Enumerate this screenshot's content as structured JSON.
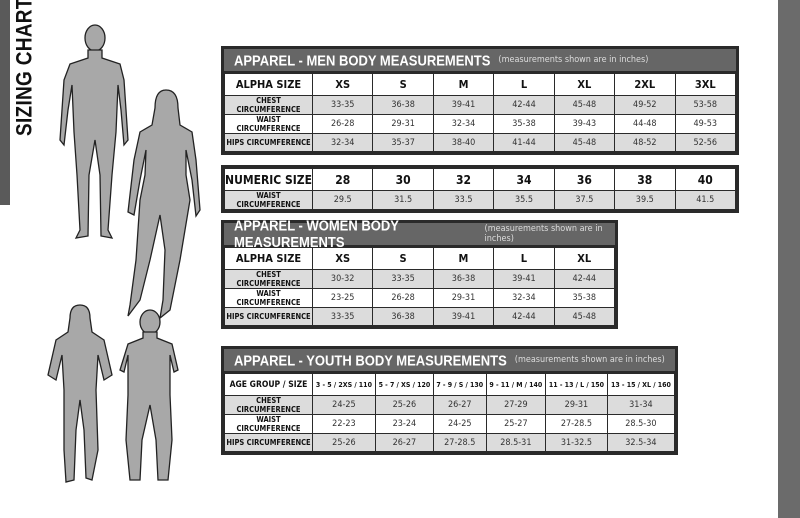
{
  "title": "SIZING CHART",
  "men": {
    "title": "APPAREL - MEN BODY MEASUREMENTS",
    "note": "(measurements shown are in inches)",
    "header": [
      "ALPHA SIZE",
      "XS",
      "S",
      "M",
      "L",
      "XL",
      "2XL",
      "3XL"
    ],
    "rows": [
      [
        "CHEST CIRCUMFERENCE",
        "33-35",
        "36-38",
        "39-41",
        "42-44",
        "45-48",
        "49-52",
        "53-58"
      ],
      [
        "WAIST CIRCUMFERENCE",
        "26-28",
        "29-31",
        "32-34",
        "35-38",
        "39-43",
        "44-48",
        "49-53"
      ],
      [
        "HIPS CIRCUMFERENCE",
        "32-34",
        "35-37",
        "38-40",
        "41-44",
        "45-48",
        "48-52",
        "52-56"
      ]
    ]
  },
  "numeric": {
    "header": [
      "NUMERIC SIZE",
      "28",
      "30",
      "32",
      "34",
      "36",
      "38",
      "40"
    ],
    "rows": [
      [
        "WAIST CIRCUMFERENCE",
        "29.5",
        "31.5",
        "33.5",
        "35.5",
        "37.5",
        "39.5",
        "41.5"
      ]
    ]
  },
  "women": {
    "title": "APPAREL - WOMEN BODY MEASUREMENTS",
    "note": "(measurements shown are in inches)",
    "header": [
      "ALPHA SIZE",
      "XS",
      "S",
      "M",
      "L",
      "XL"
    ],
    "rows": [
      [
        "CHEST CIRCUMFERENCE",
        "30-32",
        "33-35",
        "36-38",
        "39-41",
        "42-44"
      ],
      [
        "WAIST CIRCUMFERENCE",
        "23-25",
        "26-28",
        "29-31",
        "32-34",
        "35-38"
      ],
      [
        "HIPS CIRCUMFERENCE",
        "33-35",
        "36-38",
        "39-41",
        "42-44",
        "45-48"
      ]
    ]
  },
  "youth": {
    "title": "APPAREL - YOUTH BODY MEASUREMENTS",
    "note": "(measurements shown are in inches)",
    "header": [
      "AGE GROUP / SIZE",
      "3 - 5  /  2XS / 110",
      "5 - 7  /  XS / 120",
      "7 - 9  /  S / 130",
      "9 - 11  /  M / 140",
      "11 - 13  /  L / 150",
      "13 - 15 /  XL / 160"
    ],
    "rows": [
      [
        "CHEST CIRCUMFERENCE",
        "24-25",
        "25-26",
        "26-27",
        "27-29",
        "29-31",
        "31-34"
      ],
      [
        "WAIST CIRCUMFERENCE",
        "22-23",
        "23-24",
        "24-25",
        "25-27",
        "27-28.5",
        "28.5-30"
      ],
      [
        "HIPS CIRCUMFERENCE",
        "25-26",
        "26-27",
        "27-28.5",
        "28.5-31",
        "31-32.5",
        "32.5-34"
      ]
    ]
  }
}
